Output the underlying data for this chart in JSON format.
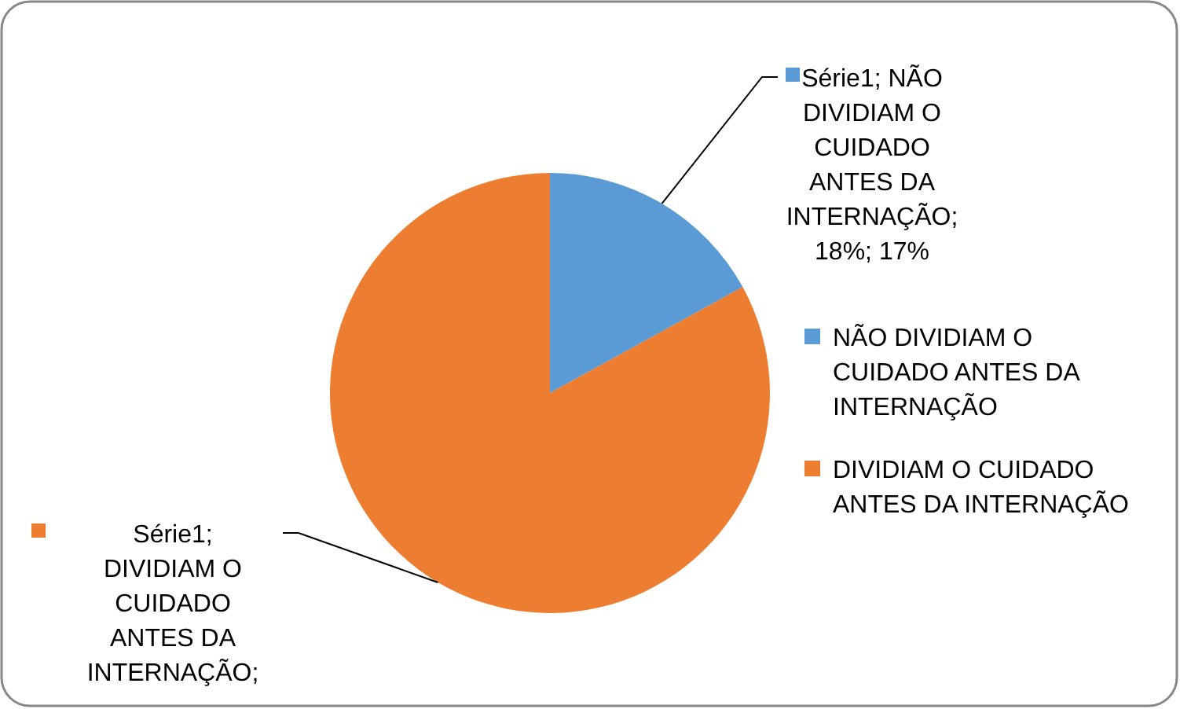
{
  "chart_data": {
    "type": "pie",
    "categories": [
      "NÃO DIVIDIAM O CUIDADO ANTES DA INTERNAÇÃO",
      "DIVIDIAM O CUIDADO ANTES DA INTERNAÇÃO"
    ],
    "values": [
      17,
      83
    ],
    "colors": [
      "#5b9bd5",
      "#ed7d31"
    ],
    "value_labels": [
      "Série1; NÃO DIVIDIAM O CUIDADO ANTES DA INTERNAÇÃO; 18%; 17%",
      "Série1; DIVIDIAM O CUIDADO ANTES DA INTERNAÇÃO;"
    ],
    "legend": "right"
  }
}
